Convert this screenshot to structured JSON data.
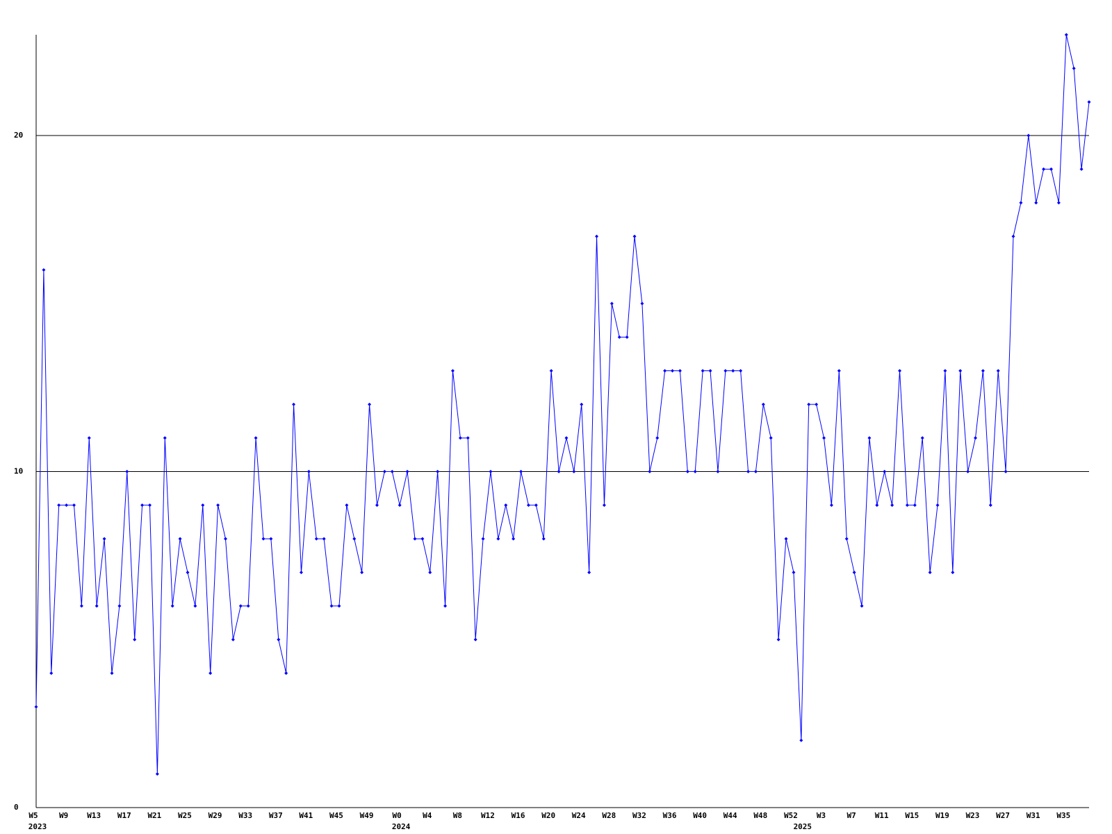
{
  "chart_data": {
    "type": "line",
    "categories": [
      "W5",
      null,
      null,
      null,
      "W9",
      null,
      null,
      null,
      "W13",
      null,
      null,
      null,
      "W17",
      null,
      null,
      null,
      "W21",
      null,
      null,
      null,
      "W25",
      null,
      null,
      null,
      "W29",
      null,
      null,
      null,
      "W33",
      null,
      null,
      null,
      "W37",
      null,
      null,
      null,
      "W41",
      null,
      null,
      null,
      "W45",
      null,
      null,
      null,
      "W49",
      null,
      null,
      null,
      "W0",
      null,
      null,
      null,
      "W4",
      null,
      null,
      null,
      "W8",
      null,
      null,
      null,
      "W12",
      null,
      null,
      null,
      "W16",
      null,
      null,
      null,
      "W20",
      null,
      null,
      null,
      "W24",
      null,
      null,
      null,
      "W28",
      null,
      null,
      null,
      "W32",
      null,
      null,
      null,
      "W36",
      null,
      null,
      null,
      "W40",
      null,
      null,
      null,
      "W44",
      null,
      null,
      null,
      "W48",
      null,
      null,
      null,
      "W52",
      null,
      null,
      null,
      "W3",
      null,
      null,
      null,
      "W7",
      null,
      null,
      null,
      "W11",
      null,
      null,
      null,
      "W15",
      null,
      null,
      null,
      "W19",
      null,
      null,
      null,
      "W23",
      null,
      null,
      null,
      "W27",
      null,
      null,
      null,
      "W31",
      null,
      null,
      null,
      "W35",
      null,
      null,
      null
    ],
    "years": [
      "2023",
      null,
      null,
      null,
      null,
      null,
      null,
      null,
      null,
      null,
      null,
      null,
      null,
      null,
      null,
      null,
      null,
      null,
      null,
      null,
      null,
      null,
      null,
      null,
      null,
      null,
      null,
      null,
      null,
      null,
      null,
      null,
      null,
      null,
      null,
      null,
      null,
      null,
      null,
      null,
      null,
      null,
      null,
      null,
      null,
      null,
      null,
      null,
      "2024",
      null,
      null,
      null,
      null,
      null,
      null,
      null,
      null,
      null,
      null,
      null,
      null,
      null,
      null,
      null,
      null,
      null,
      null,
      null,
      null,
      null,
      null,
      null,
      null,
      null,
      null,
      null,
      null,
      null,
      null,
      null,
      null,
      null,
      null,
      null,
      null,
      null,
      null,
      null,
      null,
      null,
      null,
      null,
      null,
      null,
      null,
      null,
      null,
      null,
      null,
      null,
      null,
      "2025",
      null,
      null,
      null,
      null,
      null,
      null,
      null,
      null,
      null,
      null,
      null,
      null,
      null,
      null,
      null,
      null,
      null,
      null,
      null,
      null,
      null,
      null,
      null,
      null,
      null,
      null,
      null,
      null,
      null,
      null,
      null,
      null,
      null,
      null,
      null,
      null,
      null,
      null
    ],
    "series": [
      {
        "color": "#0000ff",
        "values": [
          3,
          16,
          4,
          9,
          9,
          9,
          6,
          11,
          6,
          8,
          4,
          6,
          10,
          5,
          9,
          9,
          1,
          11,
          6,
          8,
          7,
          6,
          9,
          4,
          9,
          8,
          5,
          6,
          6,
          11,
          8,
          8,
          5,
          4,
          12,
          7,
          10,
          8,
          8,
          6,
          6,
          9,
          8,
          7,
          12,
          9,
          10,
          10,
          9,
          10,
          8,
          8,
          7,
          10,
          6,
          13,
          11,
          11,
          5,
          8,
          10,
          8,
          9,
          8,
          10,
          9,
          9,
          8,
          13,
          10,
          11,
          10,
          12,
          7,
          17,
          9,
          15,
          14,
          14,
          17,
          15,
          10,
          11,
          13,
          13,
          13,
          10,
          10,
          13,
          13,
          10,
          13,
          13,
          13,
          10,
          10,
          12,
          11,
          5,
          8,
          7,
          2,
          12,
          12,
          11,
          9,
          13,
          8,
          7,
          6,
          11,
          9,
          10,
          9,
          13,
          9,
          9,
          11,
          7,
          9,
          13,
          7,
          13,
          10,
          11,
          13,
          9,
          13,
          10,
          17,
          18,
          20,
          18,
          19,
          19,
          18,
          23,
          22,
          19,
          21
        ]
      }
    ],
    "ylim": [
      0,
      23
    ],
    "yticks": [
      0,
      10,
      20
    ],
    "grid": true
  }
}
